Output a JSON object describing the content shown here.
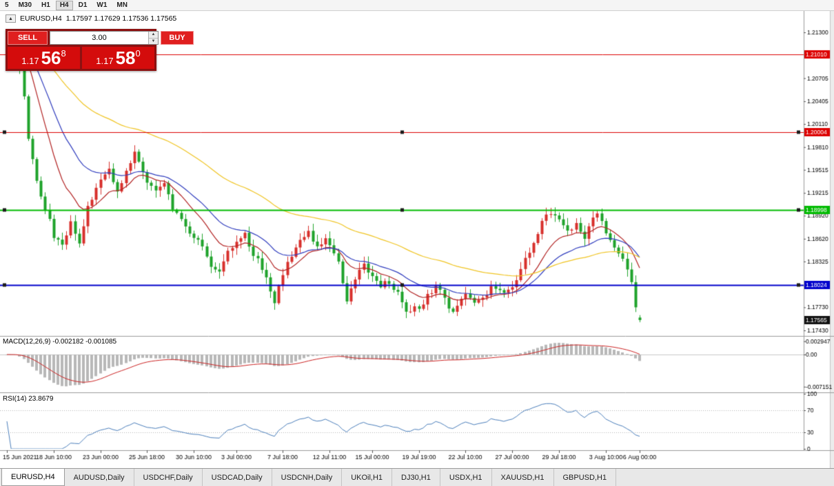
{
  "colors": {
    "panel_bg": "#8c1111",
    "button_red": "#e01f1f",
    "tile_red": "#d40c0c",
    "candle_up": "#d7302c",
    "candle_down": "#1fa32b",
    "ma_red": "#b22222",
    "ma_blue": "#2f3cbe",
    "ma_yellow": "#f0c420",
    "macd_hist": "#b8b8b8",
    "macd_signal": "#cc2222",
    "rsi_line": "#4a7ebb",
    "hline_red": "#dd0000",
    "hline_green": "#00bb00",
    "hline_blue": "#0000cc"
  },
  "toolbar": {
    "timeframes": [
      {
        "label": "5",
        "active": false
      },
      {
        "label": "M30",
        "active": false
      },
      {
        "label": "H1",
        "active": false
      },
      {
        "label": "H4",
        "active": true
      },
      {
        "label": "D1",
        "active": false
      },
      {
        "label": "W1",
        "active": false
      },
      {
        "label": "MN",
        "active": false
      }
    ]
  },
  "symbol_info": {
    "title": "EURUSD,H4",
    "ohlc": "1.17597 1.17629 1.17536 1.17565"
  },
  "trade_panel": {
    "sell_label": "SELL",
    "buy_label": "BUY",
    "volume": "3.00",
    "sell_price": {
      "base": "1.17",
      "big": "56",
      "sup": "8"
    },
    "buy_price": {
      "base": "1.17",
      "big": "58",
      "sup": "0"
    }
  },
  "indicators": {
    "macd_label": "MACD(12,26,9) -0.002182 -0.001085",
    "rsi_label": "RSI(14) 23.8679"
  },
  "tabs": {
    "items": [
      {
        "label": "EURUSD,H4",
        "active": true
      },
      {
        "label": "AUDUSD,Daily",
        "active": false
      },
      {
        "label": "USDCHF,Daily",
        "active": false
      },
      {
        "label": "USDCAD,Daily",
        "active": false
      },
      {
        "label": "USDCNH,Daily",
        "active": false
      },
      {
        "label": "UKOil,H1",
        "active": false
      },
      {
        "label": "DJ30,H1",
        "active": false
      },
      {
        "label": "USDX,H1",
        "active": false
      },
      {
        "label": "XAUUSD,H1",
        "active": false
      },
      {
        "label": "GBPUSD,H1",
        "active": false
      }
    ]
  },
  "chart_data": {
    "type": "candlestick",
    "symbol": "EURUSD",
    "timeframe": "H4",
    "bar_count": 150,
    "first_open": 1.2128,
    "last_bar": {
      "o": 1.17597,
      "h": 1.17629,
      "l": 1.17536,
      "c": 1.17565
    },
    "last_close": 1.17565,
    "close_waypoints": [
      [
        0,
        1.2125
      ],
      [
        2,
        1.2118
      ],
      [
        4,
        1.2045
      ],
      [
        5,
        1.1992
      ],
      [
        7,
        1.1938
      ],
      [
        9,
        1.1902
      ],
      [
        11,
        1.1866
      ],
      [
        13,
        1.1852
      ],
      [
        15,
        1.1882
      ],
      [
        17,
        1.1858
      ],
      [
        19,
        1.1903
      ],
      [
        22,
        1.1936
      ],
      [
        24,
        1.1953
      ],
      [
        26,
        1.1923
      ],
      [
        28,
        1.1951
      ],
      [
        30,
        1.1972
      ],
      [
        33,
        1.1936
      ],
      [
        35,
        1.1921
      ],
      [
        37,
        1.1932
      ],
      [
        39,
        1.1903
      ],
      [
        41,
        1.1887
      ],
      [
        44,
        1.1862
      ],
      [
        46,
        1.1853
      ],
      [
        48,
        1.1828
      ],
      [
        50,
        1.1817
      ],
      [
        52,
        1.1849
      ],
      [
        54,
        1.1857
      ],
      [
        56,
        1.1867
      ],
      [
        58,
        1.1842
      ],
      [
        60,
        1.1825
      ],
      [
        62,
        1.1793
      ],
      [
        63,
        1.1777
      ],
      [
        65,
        1.1817
      ],
      [
        67,
        1.1842
      ],
      [
        69,
        1.1862
      ],
      [
        71,
        1.1872
      ],
      [
        73,
        1.1852
      ],
      [
        75,
        1.1862
      ],
      [
        76,
        1.1857
      ],
      [
        78,
        1.1832
      ],
      [
        80,
        1.1782
      ],
      [
        82,
        1.1812
      ],
      [
        84,
        1.1827
      ],
      [
        86,
        1.1812
      ],
      [
        88,
        1.1802
      ],
      [
        90,
        1.1807
      ],
      [
        92,
        1.1792
      ],
      [
        94,
        1.1767
      ],
      [
        97,
        1.1772
      ],
      [
        99,
        1.1787
      ],
      [
        101,
        1.1802
      ],
      [
        103,
        1.1782
      ],
      [
        105,
        1.1767
      ],
      [
        108,
        1.1792
      ],
      [
        110,
        1.1777
      ],
      [
        112,
        1.1782
      ],
      [
        114,
        1.1802
      ],
      [
        116,
        1.1792
      ],
      [
        119,
        1.1802
      ],
      [
        121,
        1.1822
      ],
      [
        123,
        1.1847
      ],
      [
        125,
        1.1872
      ],
      [
        127,
        1.1893
      ],
      [
        130,
        1.189
      ],
      [
        132,
        1.1872
      ],
      [
        134,
        1.1882
      ],
      [
        136,
        1.1862
      ],
      [
        138,
        1.1892
      ],
      [
        139,
        1.1897
      ],
      [
        141,
        1.1867
      ],
      [
        143,
        1.1847
      ],
      [
        145,
        1.1837
      ],
      [
        147,
        1.1802
      ],
      [
        148,
        1.1777
      ],
      [
        149,
        1.17565
      ]
    ],
    "y_axis": {
      "top_price": 1.213,
      "bottom_price": 1.1743,
      "ticks": [
        1.213,
        1.20705,
        1.20405,
        1.2011,
        1.1981,
        1.19515,
        1.19215,
        1.1892,
        1.1862,
        1.18325,
        1.1773,
        1.1743
      ]
    },
    "hlines": [
      {
        "price": 1.2101,
        "label": "1.21010",
        "color": "#dd0000",
        "width": 1,
        "handles": false
      },
      {
        "price": 1.20004,
        "label": "1.20004",
        "color": "#dd0000",
        "width": 1,
        "handles": true
      },
      {
        "price": 1.18998,
        "label": "1.18998",
        "color": "#00bb00",
        "width": 2,
        "handles": true
      },
      {
        "price": 1.18024,
        "label": "1.18024",
        "color": "#0000cc",
        "width": 2,
        "handles": true
      }
    ],
    "current_price": {
      "value": 1.17565,
      "label": "1.17565",
      "badge_color": "#111111"
    },
    "x_labels": [
      {
        "i": 0,
        "t": "15 Jun 2021"
      },
      {
        "i": 11,
        "t": "18 Jun 10:00"
      },
      {
        "i": 22,
        "t": "23 Jun 00:00"
      },
      {
        "i": 33,
        "t": "25 Jun 18:00"
      },
      {
        "i": 44,
        "t": "30 Jun 10:00"
      },
      {
        "i": 54,
        "t": "3 Jul 00:00"
      },
      {
        "i": 65,
        "t": "7 Jul 18:00"
      },
      {
        "i": 76,
        "t": "12 Jul 11:00"
      },
      {
        "i": 86,
        "t": "15 Jul 00:00"
      },
      {
        "i": 97,
        "t": "19 Jul 19:00"
      },
      {
        "i": 108,
        "t": "22 Jul 10:00"
      },
      {
        "i": 119,
        "t": "27 Jul 00:00"
      },
      {
        "i": 130,
        "t": "29 Jul 18:00"
      },
      {
        "i": 141,
        "t": "3 Aug 10:00"
      },
      {
        "i": 149,
        "t": "6 Aug 00:00"
      }
    ],
    "moving_averages": [
      {
        "name": "ma-fast-red",
        "period": 12,
        "color": "#b22222"
      },
      {
        "name": "ma-mid-blue",
        "period": 24,
        "color": "#2f3cbe"
      },
      {
        "name": "ma-slow-yellow",
        "period": 60,
        "color": "#f0c420"
      }
    ],
    "macd": {
      "params": "12,26,9",
      "main_value": -0.002182,
      "signal_value": -0.001085,
      "axis_ticks": [
        0.002947,
        0,
        -0.007151
      ]
    },
    "rsi": {
      "period": 14,
      "value": 23.8679,
      "axis_ticks": [
        100,
        70,
        30,
        0
      ],
      "levels": [
        70,
        30
      ]
    }
  }
}
